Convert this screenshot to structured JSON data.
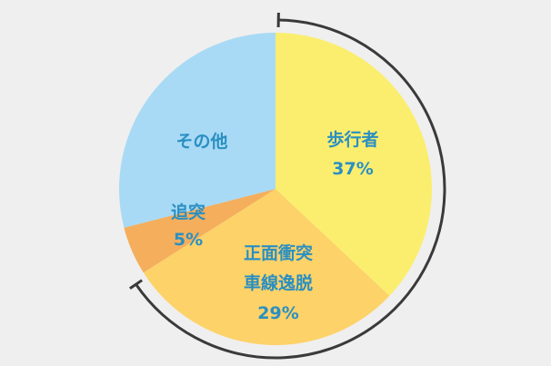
{
  "chart_data": {
    "type": "pie",
    "title": "",
    "start_angle_deg": 0,
    "direction": "clockwise",
    "slices": [
      {
        "label": "歩行者",
        "value_label": "37%",
        "value": 37,
        "color": "#fbee6e"
      },
      {
        "label": "正面衝突\n車線逸脱",
        "value_label": "29%",
        "value": 29,
        "color": "#fdd268"
      },
      {
        "label": "追突",
        "value_label": "5%",
        "value": 5,
        "color": "#f4ae5c"
      },
      {
        "label": "その他",
        "value_label": "",
        "value": 29,
        "color": "#a8daf5"
      }
    ],
    "bracket": {
      "spans_slices": [
        0,
        1
      ],
      "color": "#3a3a3a"
    }
  }
}
